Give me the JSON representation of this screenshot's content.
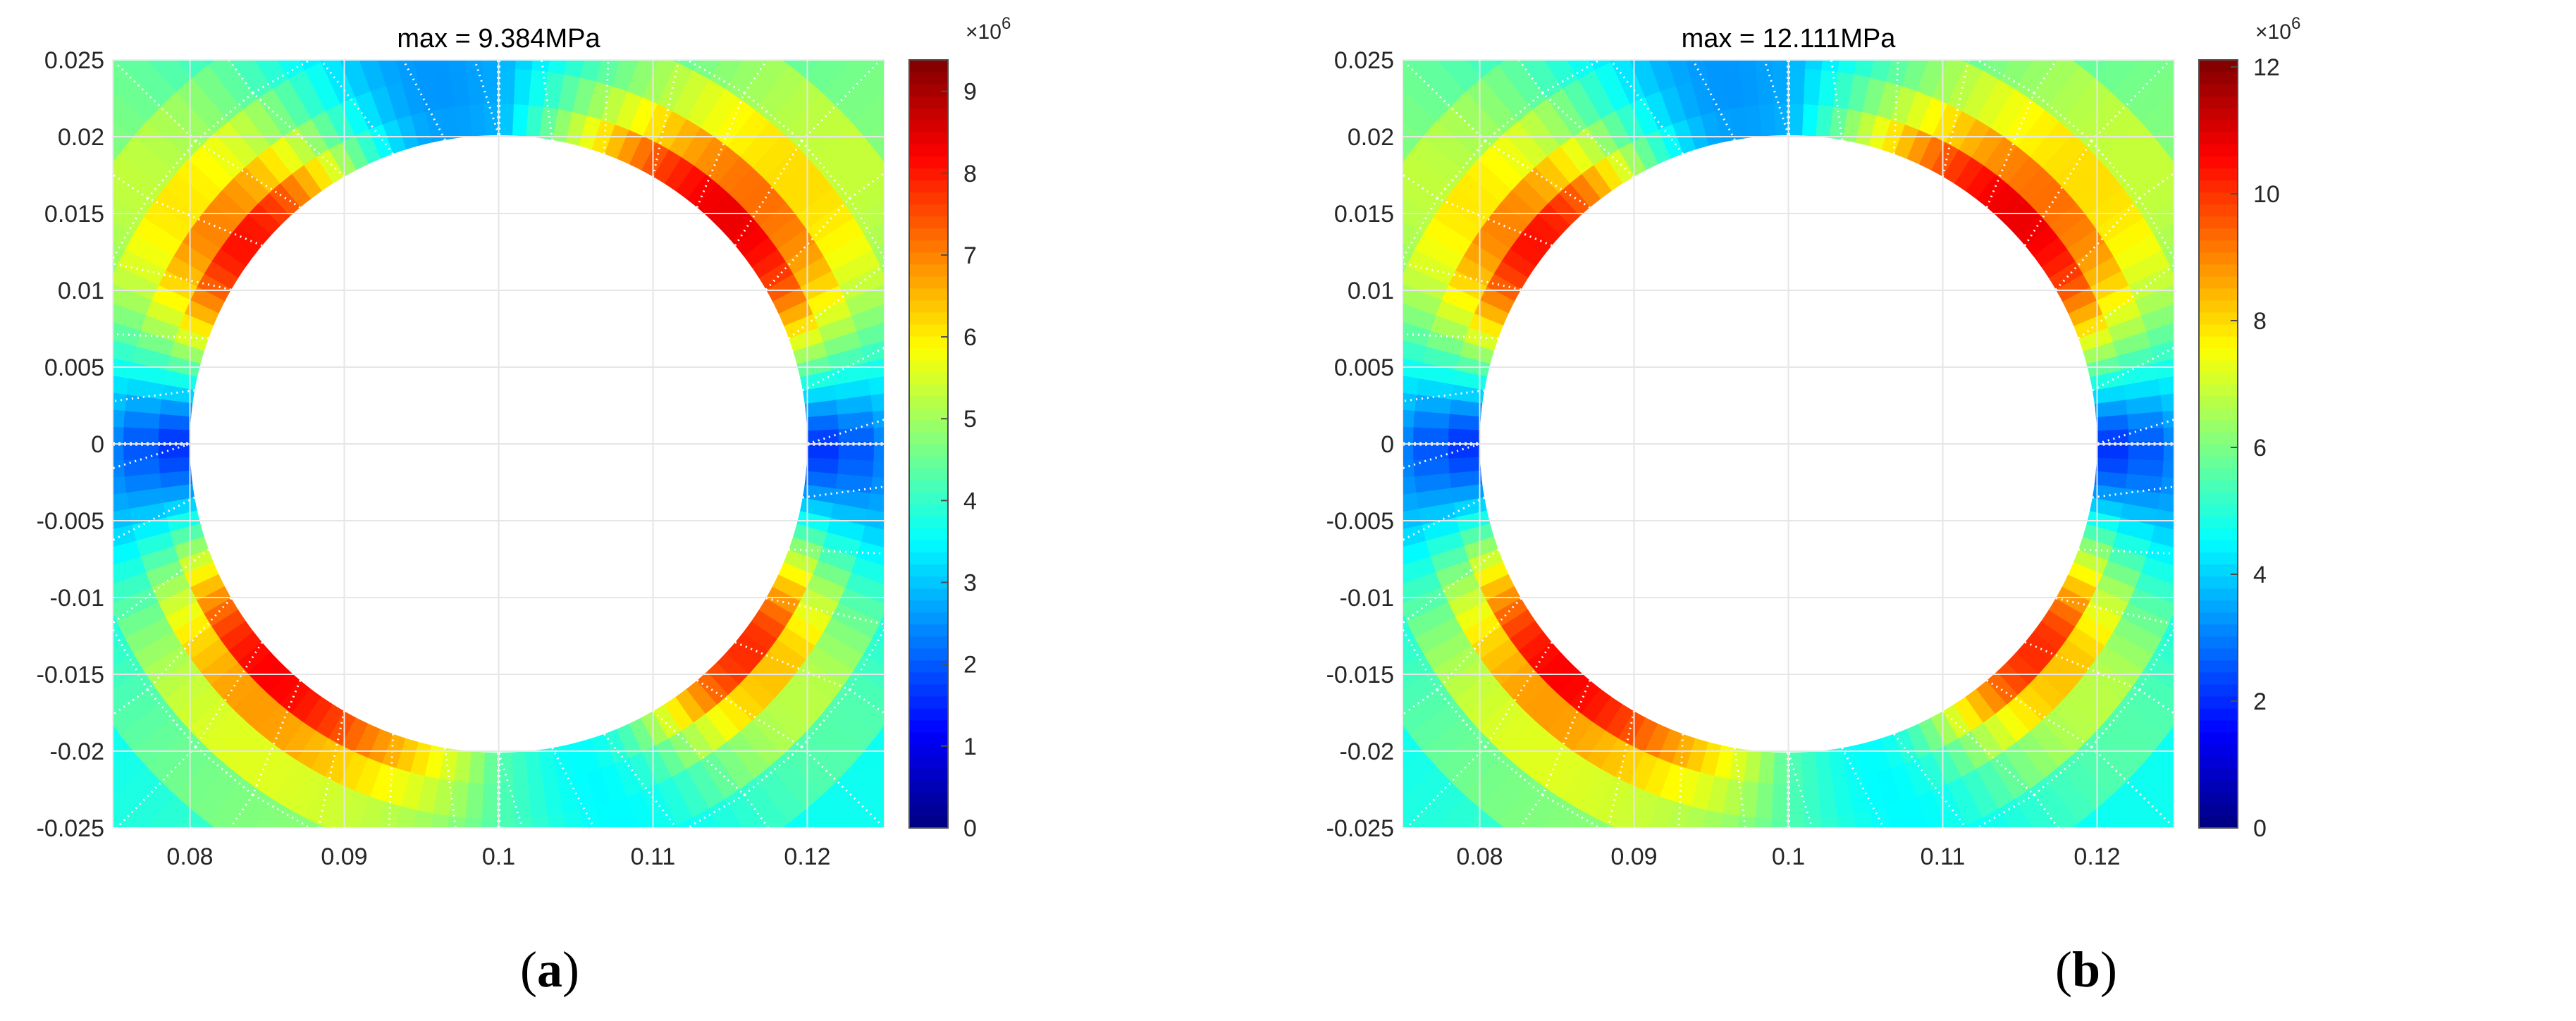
{
  "colors": {
    "colormap": [
      "#00007f",
      "#0000ff",
      "#007fff",
      "#00ffff",
      "#7fff7f",
      "#ffff00",
      "#ff7f00",
      "#ff0000",
      "#7f0000"
    ],
    "mesh_lines": "#ffffff",
    "grid": "#e6e6e6",
    "axis": "#4d4d4d"
  },
  "chart_data": [
    {
      "type": "heatmap",
      "panel_label": "a",
      "title": "max = 9.384MPa",
      "xlim": [
        0.075,
        0.125
      ],
      "ylim": [
        -0.025,
        0.025
      ],
      "xticks": [
        "0.08",
        "0.09",
        "0.1",
        "0.11",
        "0.12"
      ],
      "yticks": [
        "-0.025",
        "-0.02",
        "-0.015",
        "-0.01",
        "-0.005",
        "0",
        "0.005",
        "0.01",
        "0.015",
        "0.02",
        "0.025"
      ],
      "grid": true,
      "hole": {
        "center": [
          0.1,
          0.0
        ],
        "radius": 0.02
      },
      "colorbar": {
        "range": [
          0,
          9.384
        ],
        "exponent": "×10",
        "exponent_power": "6",
        "ticks": [
          "0",
          "1",
          "2",
          "3",
          "4",
          "5",
          "6",
          "7",
          "8",
          "9"
        ],
        "placement": "right"
      },
      "max_value": 9.384,
      "peak_angles_deg": [
        45,
        135,
        225,
        315
      ],
      "min_angles_deg": [
        0,
        110,
        180,
        290
      ]
    },
    {
      "type": "heatmap",
      "panel_label": "b",
      "title": "max = 12.111MPa",
      "xlim": [
        0.075,
        0.125
      ],
      "ylim": [
        -0.025,
        0.025
      ],
      "xticks": [
        "0.08",
        "0.09",
        "0.1",
        "0.11",
        "0.12"
      ],
      "yticks": [
        "-0.025",
        "-0.02",
        "-0.015",
        "-0.01",
        "-0.005",
        "0",
        "0.005",
        "0.01",
        "0.015",
        "0.02",
        "0.025"
      ],
      "grid": true,
      "hole": {
        "center": [
          0.1,
          0.0
        ],
        "radius": 0.02
      },
      "colorbar": {
        "range": [
          0,
          12.111
        ],
        "exponent": "×10",
        "exponent_power": "6",
        "ticks": [
          "0",
          "2",
          "4",
          "6",
          "8",
          "10",
          "12"
        ],
        "placement": "right"
      },
      "max_value": 12.111,
      "peak_angles_deg": [
        45,
        135,
        225,
        315
      ],
      "min_angles_deg": [
        0,
        110,
        180,
        290
      ]
    }
  ]
}
